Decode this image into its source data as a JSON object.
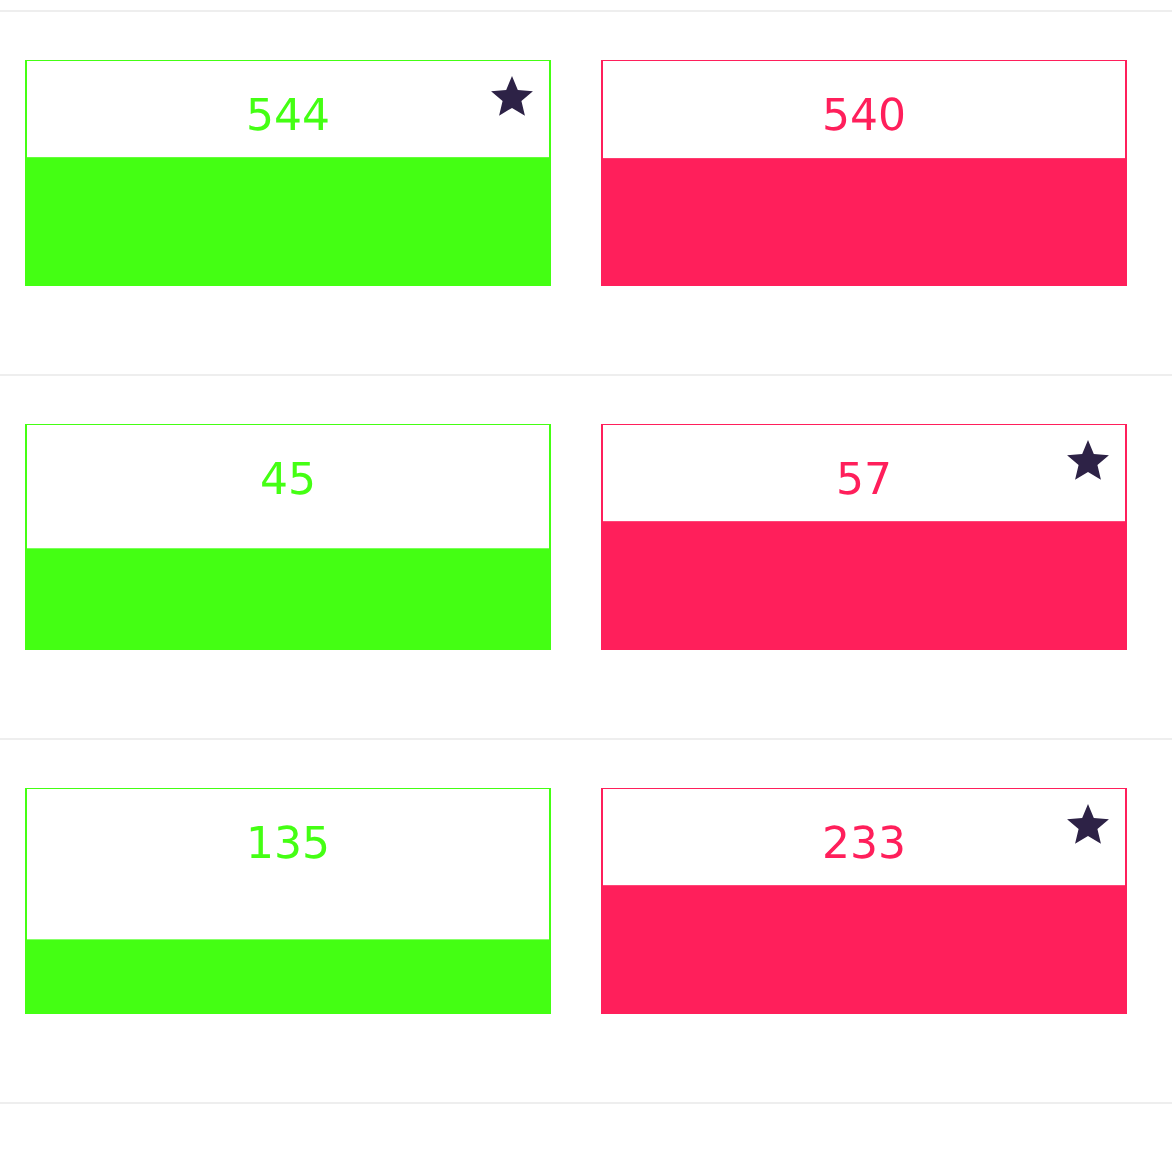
{
  "chart_data": [
    {
      "type": "bar",
      "categories": [
        null,
        null
      ],
      "values": [
        544,
        540
      ],
      "colors": [
        "#44ff13",
        "#ff1f5b"
      ],
      "data_labels": true
    },
    {
      "type": "bar",
      "categories": [
        null,
        null
      ],
      "values": [
        45,
        57
      ],
      "colors": [
        "#44ff13",
        "#ff1f5b"
      ],
      "data_labels": true
    },
    {
      "type": "bar",
      "categories": [
        null,
        null
      ],
      "values": [
        135,
        233
      ],
      "colors": [
        "#44ff13",
        "#ff1f5b"
      ],
      "data_labels": true
    }
  ]
}
